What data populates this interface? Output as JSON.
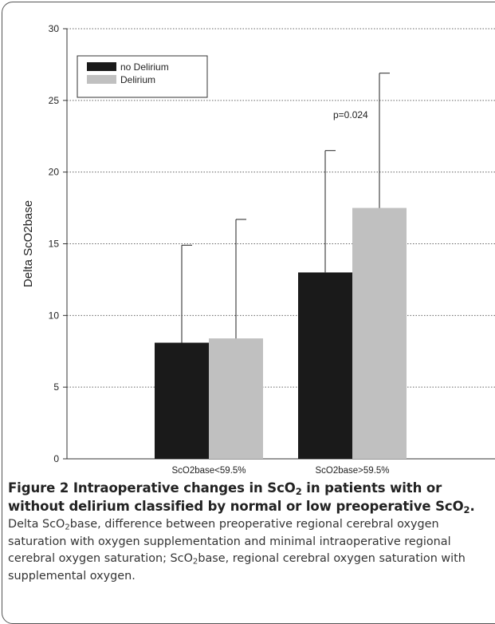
{
  "chart_data": {
    "type": "bar",
    "categories": [
      "ScO2base<59.5%",
      "ScO2base>59.5%"
    ],
    "series": [
      {
        "name": "no Delirium",
        "values": [
          8.1,
          13.0
        ],
        "error_upper": [
          14.9,
          21.5
        ],
        "color": "#1a1a1a"
      },
      {
        "name": "Delirium",
        "values": [
          8.4,
          17.5
        ],
        "error_upper": [
          16.7,
          26.9
        ],
        "color": "#c0c0c0"
      }
    ],
    "title": "",
    "xlabel": "",
    "ylabel": "Delta ScO2base",
    "ylim": [
      0,
      30
    ],
    "yticks": [
      0,
      5,
      10,
      15,
      20,
      25,
      30
    ],
    "grid": "horizontal dotted",
    "legend_position": "top-left",
    "annotations": [
      {
        "text": "p=0.024"
      }
    ]
  },
  "caption": {
    "title_prefix": "Figure 2",
    "title_parts": [
      " Intraoperative changes in ScO",
      "2",
      " in patients with or without delirium classified by normal or low preoperative ScO",
      "2",
      "."
    ],
    "body_parts": [
      "Delta ScO",
      "2",
      "base, difference between preoperative regional cerebral oxygen saturation with oxygen supplementation and minimal intraoperative regional cerebral oxygen saturation; ScO",
      "2",
      "base, regional cerebral oxygen saturation with supplemental oxygen."
    ]
  }
}
